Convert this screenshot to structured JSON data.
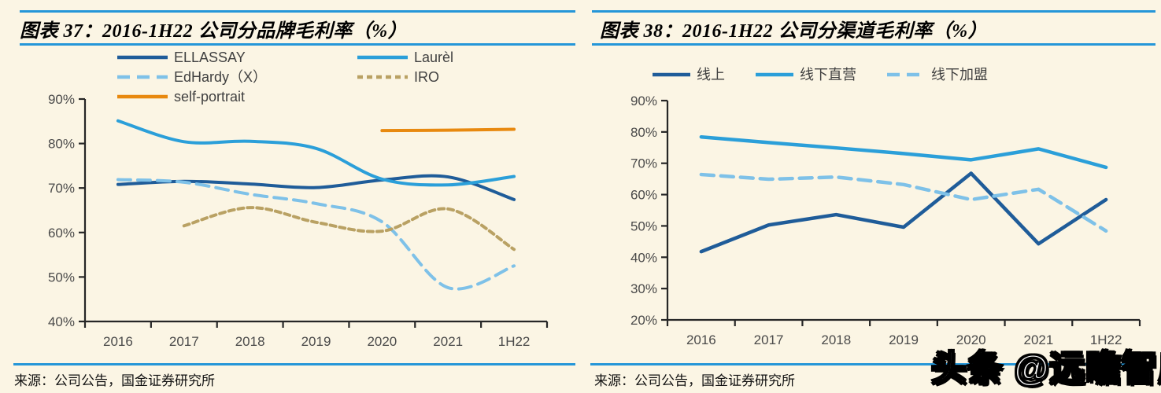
{
  "page": {
    "background": "#FBF5E4",
    "accent_blue": "#2596D8"
  },
  "panels": [
    {
      "title": "图表 37：2016-1H22 公司分品牌毛利率（%）",
      "source": "来源：公司公告，国金证券研究所"
    },
    {
      "title": "图表 38：2016-1H22 公司分渠道毛利率（%）",
      "source": "来源：公司公告，国金证券研究所"
    }
  ],
  "watermark": {
    "text": "头条 @远瞻智库"
  },
  "chart_data": [
    {
      "type": "line",
      "smooth": true,
      "title": "2016-1H22 公司分品牌毛利率（%）",
      "xlabel": "",
      "ylabel": "",
      "grid": false,
      "legend_position": "top",
      "line_width": 4,
      "categories": [
        "2016",
        "2017",
        "2018",
        "2019",
        "2020",
        "2021",
        "1H22"
      ],
      "ylim": [
        40,
        90
      ],
      "yticks": [
        90,
        80,
        70,
        60,
        50,
        40
      ],
      "ytick_suffix": "%",
      "series": [
        {
          "name": "ELLASSAY",
          "color": "#1F5C99",
          "dash": null,
          "values": [
            70.8,
            71.5,
            70.9,
            70.1,
            71.8,
            72.5,
            67.4
          ]
        },
        {
          "name": "Laurèl",
          "color": "#2B9FD9",
          "dash": null,
          "values": [
            85.1,
            80.4,
            80.5,
            78.9,
            72.0,
            70.7,
            72.6
          ]
        },
        {
          "name": "EdHardy（X）",
          "color": "#7EC1E8",
          "dash": "16 9",
          "values": [
            71.9,
            71.3,
            68.6,
            66.5,
            62.4,
            47.6,
            52.5
          ]
        },
        {
          "name": "IRO",
          "color": "#B9A163",
          "dash": "7 5",
          "values": [
            null,
            61.5,
            65.6,
            62.3,
            60.3,
            65.3,
            56.2
          ]
        },
        {
          "name": "self-portrait",
          "color": "#E8890F",
          "dash": null,
          "values": [
            null,
            null,
            null,
            null,
            82.9,
            83.0,
            83.2
          ]
        }
      ]
    },
    {
      "type": "line",
      "smooth": false,
      "title": "2016-1H22 公司分渠道毛利率（%）",
      "xlabel": "",
      "ylabel": "",
      "grid": false,
      "legend_position": "top",
      "line_width": 4.5,
      "categories": [
        "2016",
        "2017",
        "2018",
        "2019",
        "2020",
        "2021",
        "1H22"
      ],
      "ylim": [
        20,
        90
      ],
      "yticks": [
        90,
        80,
        70,
        60,
        50,
        40,
        30,
        20
      ],
      "ytick_suffix": "%",
      "series": [
        {
          "name": "线上",
          "color": "#1F5C99",
          "dash": null,
          "values": [
            41.8,
            50.3,
            53.6,
            49.6,
            66.8,
            44.3,
            58.4
          ]
        },
        {
          "name": "线下直营",
          "color": "#2B9FD9",
          "dash": null,
          "values": [
            78.4,
            76.6,
            74.9,
            73.1,
            71.1,
            74.6,
            68.7
          ]
        },
        {
          "name": "线下加盟",
          "color": "#7EC1E8",
          "dash": "16 9",
          "values": [
            66.4,
            64.9,
            65.6,
            63.2,
            58.4,
            61.7,
            48.4
          ]
        }
      ]
    }
  ]
}
